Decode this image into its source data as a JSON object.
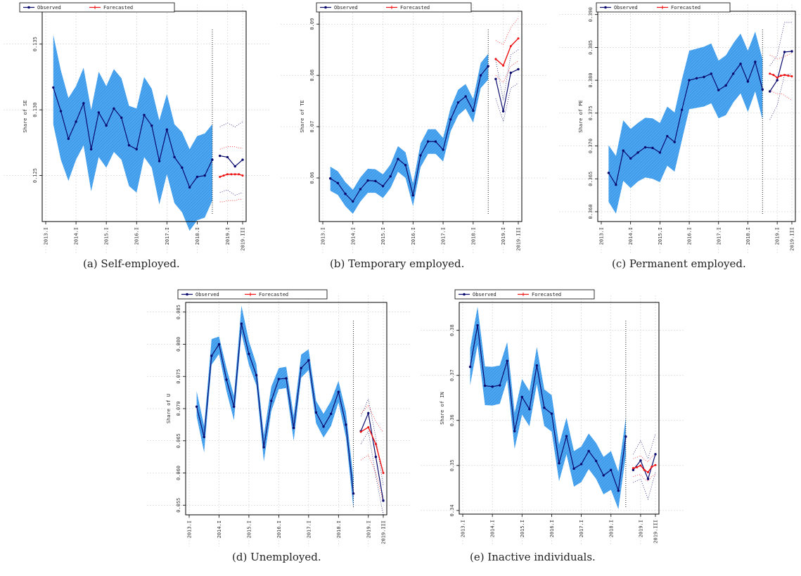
{
  "legend": {
    "observed": "Observed",
    "forecasted": "Forecasted"
  },
  "colors": {
    "observed": "#0a0a6e",
    "forecast": "#ee1111",
    "band": "#4da6f0",
    "band_hatch": "#2b86dc",
    "grid": "#c8c8c8"
  },
  "x_tick_labels": [
    "2013.I",
    "2014.I",
    "2015.I",
    "2016.I",
    "2017.I",
    "2018.I",
    "2019.I",
    "2019.III"
  ],
  "captions": [
    "(a) Self-employed.",
    "(b) Temporary employed.",
    "(c) Permanent employed.",
    "(d) Unemployed.",
    "(e) Inactive individuals."
  ],
  "chart_data": [
    {
      "type": "line",
      "caption": "(a) Self-employed.",
      "ylabel": "Share of SE",
      "ylim": [
        0.1215,
        0.1375
      ],
      "yticks": [
        0.125,
        0.13,
        0.135
      ],
      "yticklabels": [
        "0.125",
        "0.130",
        "0.135"
      ],
      "forecast_origin": 2018.5,
      "observed": {
        "x": [
          2013.25,
          2013.5,
          2013.75,
          2014.0,
          2014.25,
          2014.5,
          2014.75,
          2015.0,
          2015.25,
          2015.5,
          2015.75,
          2016.0,
          2016.25,
          2016.5,
          2016.75,
          2017.0,
          2017.25,
          2017.5,
          2017.75,
          2018.0,
          2018.25,
          2018.5
        ],
        "y": [
          0.1317,
          0.1299,
          0.1278,
          0.1291,
          0.1305,
          0.127,
          0.1298,
          0.1288,
          0.1301,
          0.1294,
          0.1273,
          0.127,
          0.1296,
          0.1288,
          0.1261,
          0.1285,
          0.1264,
          0.1256,
          0.1241,
          0.1249,
          0.125,
          0.1262
        ],
        "lower": [
          0.1289,
          0.1262,
          0.1246,
          0.1262,
          0.1273,
          0.1238,
          0.1264,
          0.1256,
          0.1268,
          0.1262,
          0.1242,
          0.1237,
          0.1264,
          0.1256,
          0.1228,
          0.1251,
          0.1229,
          0.1222,
          0.1208,
          0.1216,
          0.1218,
          0.1231
        ],
        "upper": [
          0.1357,
          0.133,
          0.1309,
          0.1318,
          0.1332,
          0.13,
          0.1329,
          0.1318,
          0.1331,
          0.1324,
          0.1303,
          0.1301,
          0.1325,
          0.1316,
          0.1292,
          0.1312,
          0.1289,
          0.1283,
          0.127,
          0.128,
          0.1282,
          0.1289
        ]
      },
      "observed_post": {
        "x": [
          2018.75,
          2019.0,
          2019.25,
          2019.5
        ],
        "y": [
          0.1265,
          0.1264,
          0.1257,
          0.1262
        ],
        "lower": [
          0.1237,
          0.1239,
          0.1235,
          0.1237
        ],
        "upper": [
          0.1287,
          0.129,
          0.1287,
          0.1291
        ]
      },
      "forecast": {
        "x": [
          2018.75,
          2018.875,
          2019.0,
          2019.125,
          2019.25,
          2019.375,
          2019.5
        ],
        "y": [
          0.1249,
          0.125,
          0.1251,
          0.1251,
          0.1251,
          0.1251,
          0.125
        ],
        "lower": [
          0.123,
          0.123,
          0.1231,
          0.1231,
          0.1231,
          0.1232,
          0.1232
        ],
        "upper": [
          0.127,
          0.1271,
          0.1272,
          0.1272,
          0.1272,
          0.1271,
          0.1271
        ]
      }
    },
    {
      "type": "line",
      "caption": "(b) Temporary employed.",
      "ylabel": "Share of TE",
      "ylim": [
        0.0515,
        0.0925
      ],
      "yticks": [
        0.06,
        0.07,
        0.08,
        0.09
      ],
      "yticklabels": [
        "0.06",
        "0.07",
        "0.08",
        "0.09"
      ],
      "forecast_origin": 2018.5,
      "observed": {
        "x": [
          2013.25,
          2013.5,
          2013.75,
          2014.0,
          2014.25,
          2014.5,
          2014.75,
          2015.0,
          2015.25,
          2015.5,
          2015.75,
          2016.0,
          2016.25,
          2016.5,
          2016.75,
          2017.0,
          2017.25,
          2017.5,
          2017.75,
          2018.0,
          2018.25,
          2018.5
        ],
        "y": [
          0.0599,
          0.059,
          0.0569,
          0.0554,
          0.0578,
          0.0595,
          0.0594,
          0.0584,
          0.0603,
          0.0637,
          0.0625,
          0.0566,
          0.0644,
          0.0671,
          0.0671,
          0.0655,
          0.0714,
          0.0747,
          0.0759,
          0.0731,
          0.08,
          0.0818
        ],
        "lower": [
          0.0575,
          0.0567,
          0.0545,
          0.053,
          0.0554,
          0.0571,
          0.0571,
          0.0561,
          0.058,
          0.0612,
          0.06,
          0.0545,
          0.0621,
          0.0647,
          0.0647,
          0.0632,
          0.0691,
          0.0722,
          0.0735,
          0.0708,
          0.0775,
          0.0792
        ],
        "upper": [
          0.0622,
          0.0613,
          0.0592,
          0.0577,
          0.0601,
          0.0618,
          0.0617,
          0.0607,
          0.0626,
          0.0662,
          0.065,
          0.0589,
          0.0667,
          0.0695,
          0.0695,
          0.0678,
          0.0737,
          0.0772,
          0.0783,
          0.0754,
          0.0824,
          0.0842
        ]
      },
      "observed_post": {
        "x": [
          2018.75,
          2019.0,
          2019.25,
          2019.5
        ],
        "y": [
          0.0793,
          0.073,
          0.0805,
          0.0812
        ],
        "lower": [
          0.0755,
          0.071,
          0.0775,
          0.0785
        ],
        "upper": [
          0.083,
          0.0752,
          0.084,
          0.085
        ]
      },
      "forecast": {
        "x": [
          2018.75,
          2019.0,
          2019.25,
          2019.5
        ],
        "y": [
          0.0832,
          0.0819,
          0.0857,
          0.0872
        ],
        "lower": [
          0.08,
          0.0786,
          0.0818,
          0.0828
        ],
        "upper": [
          0.0868,
          0.086,
          0.0893,
          0.0912
        ]
      }
    },
    {
      "type": "line",
      "caption": "(c) Permanent employed.",
      "ylabel": "Share of PE",
      "ylim": [
        0.3585,
        0.3905
      ],
      "yticks": [
        0.36,
        0.365,
        0.37,
        0.375,
        0.38,
        0.385,
        0.39
      ],
      "yticklabels": [
        "0.360",
        "0.365",
        "0.370",
        "0.375",
        "0.380",
        "0.385",
        "0.390"
      ],
      "forecast_origin": 2018.5,
      "observed": {
        "x": [
          2013.25,
          2013.5,
          2013.75,
          2014.0,
          2014.25,
          2014.5,
          2014.75,
          2015.0,
          2015.25,
          2015.5,
          2015.75,
          2016.0,
          2016.25,
          2016.5,
          2016.75,
          2017.0,
          2017.25,
          2017.5,
          2017.75,
          2018.0,
          2018.25,
          2018.5
        ],
        "y": [
          0.3659,
          0.3641,
          0.3693,
          0.3681,
          0.369,
          0.3698,
          0.3697,
          0.369,
          0.3715,
          0.3706,
          0.3755,
          0.38,
          0.3803,
          0.3805,
          0.381,
          0.3785,
          0.3792,
          0.381,
          0.3825,
          0.3798,
          0.3828,
          0.3786
        ],
        "lower": [
          0.3615,
          0.3597,
          0.3647,
          0.3636,
          0.3646,
          0.3652,
          0.365,
          0.3645,
          0.367,
          0.3661,
          0.3709,
          0.3756,
          0.3758,
          0.376,
          0.3765,
          0.3742,
          0.3747,
          0.3766,
          0.378,
          0.3752,
          0.3783,
          0.374
        ],
        "upper": [
          0.3701,
          0.3685,
          0.3739,
          0.3726,
          0.3735,
          0.3743,
          0.3742,
          0.3735,
          0.376,
          0.3751,
          0.3801,
          0.3845,
          0.3848,
          0.3851,
          0.3856,
          0.383,
          0.3838,
          0.3856,
          0.3871,
          0.3845,
          0.3874,
          0.3832
        ]
      },
      "observed_post": {
        "x": [
          2018.75,
          2019.0,
          2019.25,
          2019.5
        ],
        "y": [
          0.3783,
          0.38,
          0.3843,
          0.3844
        ],
        "lower": [
          0.374,
          0.3762,
          0.3808,
          0.381
        ],
        "upper": [
          0.3822,
          0.3838,
          0.3888,
          0.3888
        ]
      },
      "forecast": {
        "x": [
          2018.75,
          2018.875,
          2019.0,
          2019.125,
          2019.25,
          2019.375,
          2019.5
        ],
        "y": [
          0.381,
          0.3808,
          0.3804,
          0.3807,
          0.3808,
          0.3807,
          0.3806
        ],
        "lower": [
          0.3785,
          0.3782,
          0.3779,
          0.378,
          0.3777,
          0.3773,
          0.377
        ],
        "upper": [
          0.3838,
          0.3836,
          0.3832,
          0.3834,
          0.3836,
          0.3839,
          0.3841
        ]
      }
    },
    {
      "type": "line",
      "caption": "(d) Unemployed.",
      "ylabel": "Share of U",
      "ylim": [
        0.0535,
        0.0865
      ],
      "yticks": [
        0.055,
        0.06,
        0.065,
        0.07,
        0.075,
        0.08,
        0.085
      ],
      "yticklabels": [
        "0.055",
        "0.060",
        "0.065",
        "0.070",
        "0.075",
        "0.080",
        "0.085"
      ],
      "forecast_origin": 2018.5,
      "observed": {
        "x": [
          2013.25,
          2013.5,
          2013.75,
          2014.0,
          2014.25,
          2014.5,
          2014.75,
          2015.0,
          2015.25,
          2015.5,
          2015.75,
          2016.0,
          2016.25,
          2016.5,
          2016.75,
          2017.0,
          2017.25,
          2017.5,
          2017.75,
          2018.0,
          2018.25,
          2018.5
        ],
        "y": [
          0.0703,
          0.0656,
          0.0782,
          0.08,
          0.0745,
          0.0703,
          0.0832,
          0.0785,
          0.0752,
          0.064,
          0.0712,
          0.0746,
          0.0747,
          0.067,
          0.0763,
          0.0775,
          0.0694,
          0.0672,
          0.0692,
          0.0726,
          0.0675,
          0.0568
        ],
        "lower": [
          0.0688,
          0.0632,
          0.0768,
          0.0785,
          0.0727,
          0.0682,
          0.0817,
          0.0768,
          0.0736,
          0.0618,
          0.0696,
          0.073,
          0.0732,
          0.065,
          0.0748,
          0.076,
          0.0677,
          0.0655,
          0.0673,
          0.071,
          0.0655,
          0.0545
        ],
        "upper": [
          0.0727,
          0.0673,
          0.0808,
          0.0812,
          0.0763,
          0.072,
          0.086,
          0.0805,
          0.0769,
          0.0659,
          0.0734,
          0.0763,
          0.0765,
          0.0689,
          0.0784,
          0.0792,
          0.0712,
          0.0692,
          0.0712,
          0.0743,
          0.0695,
          0.0592
        ]
      },
      "observed_post": {
        "x": [
          2018.75,
          2019.0,
          2019.25,
          2019.5
        ],
        "y": [
          0.0665,
          0.0693,
          0.0625,
          0.0557
        ],
        "lower": [
          0.0645,
          0.0665,
          0.0595,
          0.0535
        ],
        "upper": [
          0.0688,
          0.0715,
          0.0655,
          0.058
        ]
      },
      "forecast": {
        "x": [
          2018.75,
          2019.0,
          2019.25,
          2019.5
        ],
        "y": [
          0.0664,
          0.0671,
          0.0645,
          0.06
        ],
        "lower": [
          0.062,
          0.0628,
          0.06,
          0.0555
        ],
        "upper": [
          0.0692,
          0.0705,
          0.068,
          0.0663
        ]
      }
    },
    {
      "type": "line",
      "caption": "(e) Inactive individuals.",
      "ylabel": "Share of IN",
      "ylim": [
        0.3392,
        0.3862
      ],
      "yticks": [
        0.34,
        0.35,
        0.36,
        0.37,
        0.38
      ],
      "yticklabels": [
        "0.34",
        "0.35",
        "0.36",
        "0.37",
        "0.38"
      ],
      "forecast_origin": 2018.5,
      "observed": {
        "x": [
          2013.25,
          2013.5,
          2013.75,
          2014.0,
          2014.25,
          2014.5,
          2014.75,
          2015.0,
          2015.25,
          2015.5,
          2015.75,
          2016.0,
          2016.25,
          2016.5,
          2016.75,
          2017.0,
          2017.25,
          2017.5,
          2017.75,
          2018.0,
          2018.25,
          2018.5
        ],
        "y": [
          0.3719,
          0.3811,
          0.3677,
          0.3675,
          0.3678,
          0.3732,
          0.3576,
          0.3652,
          0.3625,
          0.3722,
          0.3628,
          0.3615,
          0.3505,
          0.3565,
          0.3493,
          0.3503,
          0.3532,
          0.351,
          0.3478,
          0.349,
          0.3444,
          0.3564
        ],
        "lower": [
          0.3678,
          0.3768,
          0.3634,
          0.3633,
          0.3637,
          0.369,
          0.3537,
          0.3613,
          0.3587,
          0.3681,
          0.3588,
          0.3575,
          0.3465,
          0.3525,
          0.3453,
          0.3463,
          0.3492,
          0.347,
          0.3436,
          0.3446,
          0.3403,
          0.3522
        ],
        "upper": [
          0.376,
          0.3852,
          0.372,
          0.3719,
          0.3722,
          0.3774,
          0.3617,
          0.3692,
          0.3665,
          0.3763,
          0.3669,
          0.3656,
          0.3546,
          0.3606,
          0.3532,
          0.3542,
          0.3571,
          0.355,
          0.3519,
          0.3532,
          0.3486,
          0.3606
        ]
      },
      "observed_post": {
        "x": [
          2018.75,
          2019.0,
          2019.25,
          2019.5
        ],
        "y": [
          0.349,
          0.3511,
          0.347,
          0.3525
        ],
        "lower": [
          0.3462,
          0.347,
          0.3425,
          0.3485
        ],
        "upper": [
          0.3525,
          0.3555,
          0.3515,
          0.357
        ]
      },
      "forecast": {
        "x": [
          2018.75,
          2018.875,
          2019.0,
          2019.125,
          2019.25,
          2019.375,
          2019.5
        ],
        "y": [
          0.3494,
          0.3496,
          0.35,
          0.349,
          0.3485,
          0.3497,
          0.3501
        ],
        "lower": [
          0.3475,
          0.3478,
          0.348,
          0.347,
          0.3465,
          0.3476,
          0.348
        ],
        "upper": [
          0.3515,
          0.3518,
          0.3522,
          0.3513,
          0.3508,
          0.352,
          0.3524
        ]
      }
    }
  ]
}
